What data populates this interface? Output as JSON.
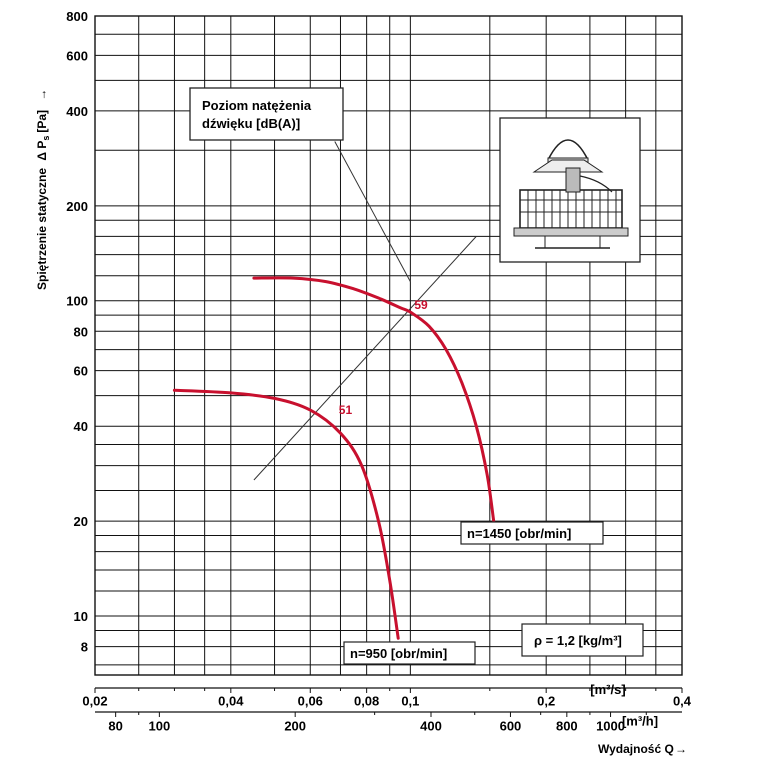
{
  "chart_data": {
    "type": "line",
    "x_scale": "log",
    "y_scale": "log",
    "xlim": [
      0.02,
      0.4
    ],
    "ylim": [
      6.5,
      800
    ],
    "x_ticks": [
      {
        "v": 0.02,
        "label": "0,02"
      },
      {
        "v": 0.04,
        "label": "0,04"
      },
      {
        "v": 0.06,
        "label": "0,06"
      },
      {
        "v": 0.08,
        "label": "0,08"
      },
      {
        "v": 0.1,
        "label": "0,1"
      },
      {
        "v": 0.2,
        "label": "0,2"
      },
      {
        "v": 0.4,
        "label": "0,4"
      }
    ],
    "x_unit_label": "[m³/s]",
    "x2_ticks": [
      {
        "v": 80,
        "label": "80"
      },
      {
        "v": 100,
        "label": "100"
      },
      {
        "v": 200,
        "label": "200"
      },
      {
        "v": 400,
        "label": "400"
      },
      {
        "v": 600,
        "label": "600"
      },
      {
        "v": 800,
        "label": "800"
      },
      {
        "v": 1000,
        "label": "1000"
      }
    ],
    "x2_unit_label": "[m³/h]",
    "y_ticks": [
      {
        "v": 8,
        "label": "8"
      },
      {
        "v": 10,
        "label": "10"
      },
      {
        "v": 20,
        "label": "20"
      },
      {
        "v": 40,
        "label": "40"
      },
      {
        "v": 60,
        "label": "60"
      },
      {
        "v": 80,
        "label": "80"
      },
      {
        "v": 100,
        "label": "100"
      },
      {
        "v": 200,
        "label": "200"
      },
      {
        "v": 400,
        "label": "400"
      },
      {
        "v": 600,
        "label": "600"
      },
      {
        "v": 800,
        "label": "800"
      }
    ],
    "grid_x": [
      0.025,
      0.03,
      0.035,
      0.04,
      0.05,
      0.06,
      0.07,
      0.08,
      0.09,
      0.1,
      0.15,
      0.2,
      0.25,
      0.3,
      0.35,
      0.4
    ],
    "grid_y": [
      7,
      8,
      9,
      10,
      12,
      14,
      16,
      18,
      20,
      25,
      30,
      35,
      40,
      50,
      60,
      70,
      80,
      90,
      100,
      120,
      140,
      160,
      180,
      200,
      300,
      400,
      500,
      600,
      700,
      800
    ],
    "xlabel": "Wydajność Q",
    "ylabel": "Spiętrzenie statyczne",
    "ylabel_symbol": "Δ P",
    "ylabel_subscript": "s",
    "ylabel_unit": "[Pa]",
    "series": [
      {
        "name": "n=1450 [obr/min]",
        "color": "#c8102e",
        "points": [
          [
            0.045,
            118
          ],
          [
            0.055,
            118
          ],
          [
            0.065,
            115
          ],
          [
            0.075,
            109
          ],
          [
            0.085,
            102
          ],
          [
            0.095,
            95
          ],
          [
            0.1,
            92
          ],
          [
            0.11,
            83
          ],
          [
            0.12,
            70
          ],
          [
            0.13,
            55
          ],
          [
            0.14,
            40
          ],
          [
            0.148,
            28
          ],
          [
            0.153,
            20
          ]
        ]
      },
      {
        "name": "n=950 [obr/min]",
        "color": "#c8102e",
        "points": [
          [
            0.03,
            52
          ],
          [
            0.04,
            51
          ],
          [
            0.05,
            49
          ],
          [
            0.06,
            45
          ],
          [
            0.07,
            38
          ],
          [
            0.078,
            30
          ],
          [
            0.085,
            20
          ],
          [
            0.09,
            13
          ],
          [
            0.094,
            8.5
          ]
        ]
      }
    ],
    "efficiency_points": [
      {
        "label": "59",
        "x": 0.1,
        "y": 97
      },
      {
        "label": "51",
        "x": 0.068,
        "y": 45
      }
    ],
    "noise_line": [
      [
        0.045,
        27
      ],
      [
        0.14,
        160
      ]
    ],
    "noise_leader": [
      [
        0.068,
        320
      ],
      [
        0.1,
        115
      ]
    ],
    "annotations": {
      "noise_level_line1": "Poziom natężenia",
      "noise_level_line2": "dźwięku [dB(A)]",
      "density": "ρ = 1,2 [kg/m³]"
    }
  }
}
